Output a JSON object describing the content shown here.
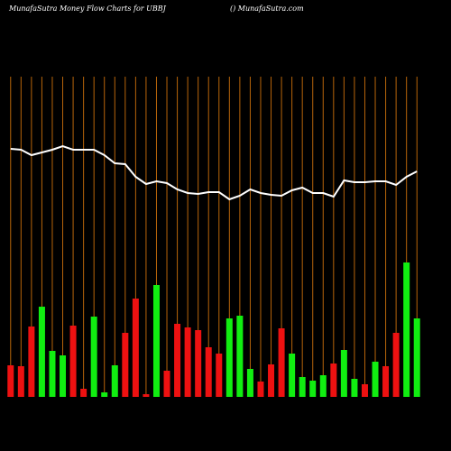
{
  "chart_data": {
    "type": "bar-line",
    "title": "MunafaSutra  Money Flow  Charts for UBBJ",
    "subtitle": "() MunafaSutra.com",
    "ylim": [
      0,
      355
    ],
    "gridline_color": "#b8650a",
    "series": [
      {
        "name": "Money Flow",
        "type": "bar",
        "values": [
          35,
          34,
          78,
          100,
          51,
          46,
          79,
          9,
          89,
          5,
          35,
          71,
          109,
          3,
          124,
          29,
          81,
          77,
          74,
          55,
          48,
          87,
          90,
          31,
          17,
          36,
          76,
          48,
          22,
          18,
          24,
          37,
          52,
          20,
          14,
          39,
          34,
          71,
          149,
          87
        ],
        "colors": [
          "#ee1111",
          "#ee1111",
          "#ee1111",
          "#11ee11",
          "#11ee11",
          "#11ee11",
          "#ee1111",
          "#ee1111",
          "#11ee11",
          "#11ee11",
          "#11ee11",
          "#ee1111",
          "#ee1111",
          "#ee1111",
          "#11ee11",
          "#ee1111",
          "#ee1111",
          "#ee1111",
          "#ee1111",
          "#ee1111",
          "#ee1111",
          "#11ee11",
          "#11ee11",
          "#11ee11",
          "#ee1111",
          "#ee1111",
          "#ee1111",
          "#11ee11",
          "#11ee11",
          "#11ee11",
          "#11ee11",
          "#ee1111",
          "#11ee11",
          "#11ee11",
          "#ee1111",
          "#11ee11",
          "#ee1111",
          "#ee1111",
          "#11ee11",
          "#11ee11"
        ]
      },
      {
        "name": "Price",
        "type": "line",
        "color": "#ffffff",
        "values": [
          275,
          274,
          268,
          271,
          274,
          278,
          274,
          274,
          274,
          268,
          259,
          258,
          244,
          236,
          239,
          237,
          230,
          226,
          225,
          227,
          227,
          219,
          223,
          230,
          226,
          224,
          223,
          229,
          232,
          226,
          226,
          222,
          240,
          238,
          238,
          239,
          239,
          235,
          244,
          250
        ]
      }
    ]
  }
}
